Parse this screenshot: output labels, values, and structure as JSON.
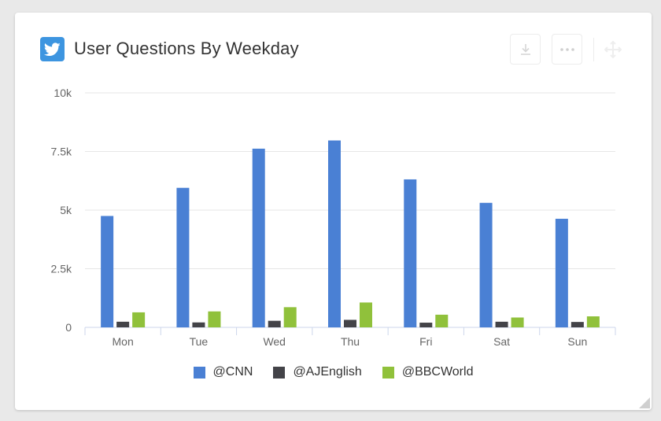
{
  "header": {
    "title": "User Questions By Weekday",
    "brand_icon": "twitter-bird-icon",
    "brand_color": "#3d95e0"
  },
  "toolbar": {
    "download_icon": "download-icon",
    "more_icon": "more-options-icon",
    "move_icon": "move-icon"
  },
  "chart_data": {
    "type": "bar",
    "title": "User Questions By Weekday",
    "xlabel": "",
    "ylabel": "",
    "categories": [
      "Mon",
      "Tue",
      "Wed",
      "Thu",
      "Fri",
      "Sat",
      "Sun"
    ],
    "series": [
      {
        "name": "@CNN",
        "color": "#4a80d4",
        "values": [
          4750,
          5950,
          7620,
          7970,
          6310,
          5310,
          4630
        ]
      },
      {
        "name": "@AJEnglish",
        "color": "#434348",
        "values": [
          240,
          210,
          280,
          320,
          200,
          240,
          230
        ]
      },
      {
        "name": "@BBCWorld",
        "color": "#90c13b",
        "values": [
          640,
          680,
          860,
          1060,
          540,
          420,
          470
        ]
      }
    ],
    "ylim": [
      0,
      10000
    ],
    "yticks": [
      0,
      2500,
      5000,
      7500,
      10000
    ],
    "ytick_labels": [
      "0",
      "2.5k",
      "5k",
      "7.5k",
      "10k"
    ],
    "grid": true,
    "legend_position": "bottom-center"
  }
}
